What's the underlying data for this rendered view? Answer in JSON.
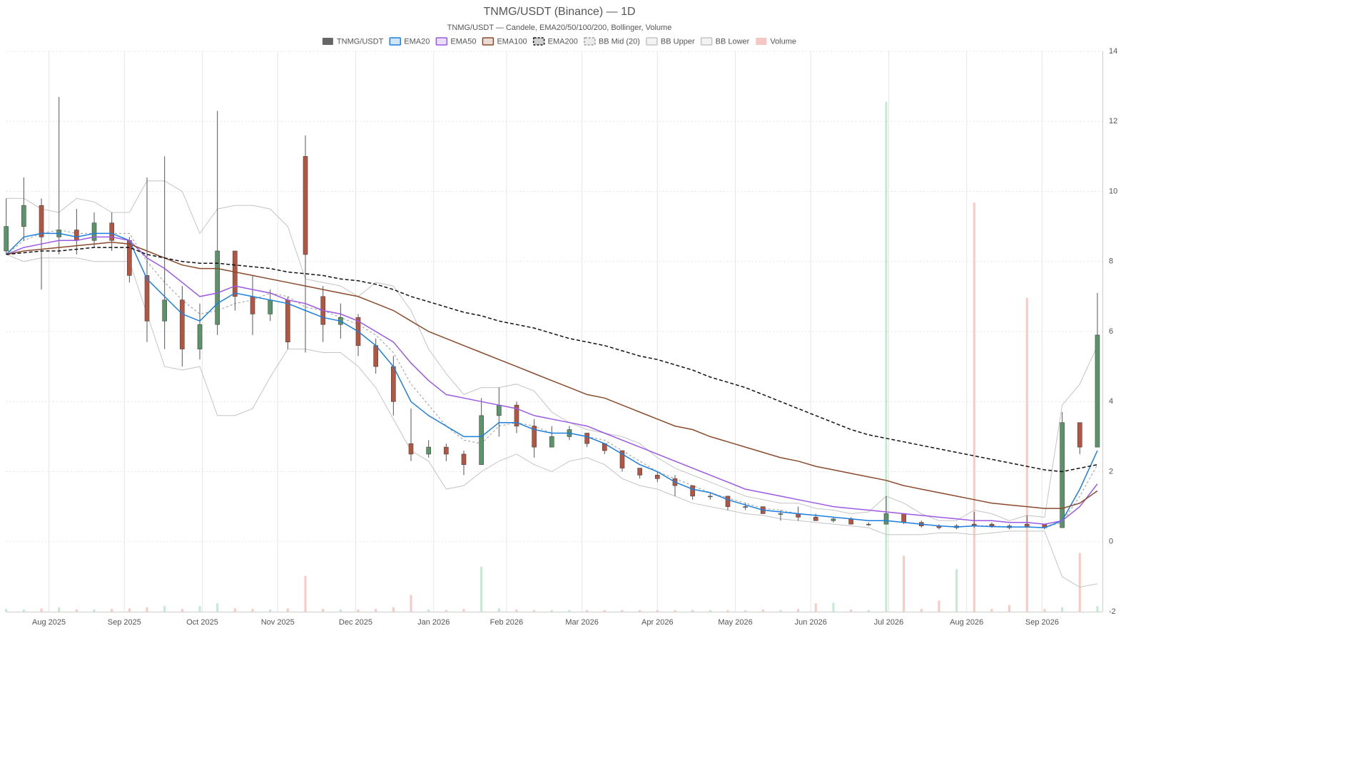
{
  "chart_data": {
    "type": "candlestick",
    "title": "TNMG/USDT (Binance) — 1D",
    "subtitle": "TNMG/USDT — Candele, EMA20/50/100/200, Bollinger, Volume",
    "x": [
      0,
      7,
      14,
      21,
      28,
      35,
      42,
      49,
      56,
      63,
      70,
      77,
      84,
      91,
      98,
      105,
      112,
      119,
      126,
      133,
      140,
      147,
      154,
      161,
      168,
      175,
      182,
      189,
      196,
      203,
      210,
      217,
      224,
      231,
      238,
      245,
      252,
      259,
      266,
      273,
      280,
      287,
      294,
      301,
      308,
      315,
      322,
      329,
      336,
      343,
      350,
      357,
      364,
      371,
      378,
      385,
      392,
      399,
      406,
      413,
      420,
      427,
      434
    ],
    "xlim": [
      0,
      436
    ],
    "xticks": [
      {
        "value": 17,
        "label": "Aug 2025"
      },
      {
        "value": 47,
        "label": "Sep 2025"
      },
      {
        "value": 78,
        "label": "Oct 2025"
      },
      {
        "value": 108,
        "label": "Nov 2025"
      },
      {
        "value": 139,
        "label": "Dec 2025"
      },
      {
        "value": 170,
        "label": "Jan 2026"
      },
      {
        "value": 199,
        "label": "Feb 2026"
      },
      {
        "value": 229,
        "label": "Mar 2026"
      },
      {
        "value": 259,
        "label": "Apr 2026"
      },
      {
        "value": 290,
        "label": "May 2026"
      },
      {
        "value": 320,
        "label": "Jun 2026"
      },
      {
        "value": 351,
        "label": "Jul 2026"
      },
      {
        "value": 382,
        "label": "Aug 2026"
      },
      {
        "value": 412,
        "label": "Sep 2026"
      }
    ],
    "ylim": [
      -2,
      14
    ],
    "yticks": [
      -2,
      0,
      2,
      4,
      6,
      8,
      10,
      12,
      14
    ],
    "grid": true,
    "candles": {
      "name": "TNMG/USDT",
      "color": "#666666",
      "up_color": "#5a9468",
      "down_color": "#b5553f",
      "open": [
        8.3,
        9.0,
        9.6,
        8.7,
        8.9,
        8.6,
        9.1,
        8.6,
        7.6,
        6.3,
        6.9,
        5.5,
        6.2,
        8.3,
        7.0,
        6.5,
        6.9,
        11.0,
        7.0,
        6.2,
        6.4,
        5.6,
        5.0,
        2.8,
        2.5,
        2.7,
        2.5,
        2.2,
        3.6,
        3.9,
        3.3,
        2.7,
        3.0,
        3.1,
        2.8,
        2.6,
        2.1,
        1.9,
        1.8,
        1.6,
        1.3,
        1.3,
        1.0,
        1.0,
        0.8,
        0.8,
        0.7,
        0.6,
        0.65,
        0.5,
        0.5,
        0.8,
        0.55,
        0.45,
        0.4,
        0.5,
        0.5,
        0.45,
        0.5,
        0.5,
        0.4,
        3.4,
        2.7
      ],
      "high": [
        9.8,
        10.4,
        9.8,
        12.7,
        9.5,
        9.4,
        9.4,
        8.7,
        10.4,
        11.0,
        7.3,
        6.8,
        12.3,
        8.3,
        7.6,
        7.2,
        7.0,
        11.6,
        7.3,
        6.8,
        6.5,
        5.8,
        5.3,
        3.8,
        2.9,
        2.8,
        2.6,
        4.1,
        4.4,
        4.0,
        3.5,
        3.3,
        3.3,
        3.1,
        2.8,
        2.6,
        2.1,
        2.0,
        1.9,
        1.6,
        1.4,
        1.3,
        1.1,
        1.0,
        0.9,
        1.0,
        0.8,
        0.7,
        0.7,
        0.55,
        1.3,
        0.8,
        0.6,
        0.5,
        0.5,
        0.85,
        0.55,
        0.5,
        0.75,
        0.5,
        3.7,
        3.4,
        7.1
      ],
      "low": [
        8.2,
        8.6,
        7.2,
        8.2,
        8.2,
        8.4,
        8.3,
        7.4,
        5.7,
        5.5,
        5.0,
        5.2,
        5.9,
        6.6,
        5.9,
        6.3,
        5.5,
        5.4,
        5.7,
        5.8,
        5.3,
        4.8,
        3.6,
        2.3,
        2.4,
        2.3,
        1.9,
        2.2,
        3.0,
        3.1,
        2.4,
        2.7,
        2.9,
        2.7,
        2.5,
        2.0,
        1.8,
        1.7,
        1.3,
        1.2,
        1.2,
        0.9,
        0.9,
        0.8,
        0.6,
        0.6,
        0.6,
        0.55,
        0.5,
        0.45,
        0.5,
        0.5,
        0.4,
        0.35,
        0.35,
        0.4,
        0.4,
        0.35,
        0.4,
        0.35,
        0.4,
        2.5,
        2.7
      ],
      "close": [
        9.0,
        9.6,
        8.7,
        8.9,
        8.6,
        9.1,
        8.6,
        7.6,
        6.3,
        6.9,
        5.5,
        6.2,
        8.3,
        7.0,
        6.5,
        6.9,
        5.7,
        8.2,
        6.2,
        6.4,
        5.6,
        5.0,
        4.0,
        2.5,
        2.7,
        2.5,
        2.2,
        3.6,
        3.9,
        3.3,
        2.7,
        3.0,
        3.2,
        2.8,
        2.6,
        2.1,
        1.9,
        1.8,
        1.6,
        1.3,
        1.3,
        1.0,
        1.0,
        0.8,
        0.8,
        0.7,
        0.6,
        0.65,
        0.5,
        0.5,
        0.8,
        0.55,
        0.45,
        0.4,
        0.45,
        0.45,
        0.45,
        0.4,
        0.42,
        0.4,
        3.4,
        2.7,
        5.9
      ]
    },
    "lines": [
      {
        "name": "EMA20",
        "color": "#1a7fe0",
        "dash": false,
        "values": [
          8.2,
          8.7,
          8.8,
          8.8,
          8.7,
          8.8,
          8.8,
          8.6,
          7.5,
          7.0,
          6.5,
          6.3,
          6.8,
          7.1,
          7.0,
          6.9,
          6.8,
          6.6,
          6.4,
          6.3,
          6.0,
          5.6,
          5.0,
          4.0,
          3.6,
          3.3,
          3.0,
          3.0,
          3.4,
          3.4,
          3.2,
          3.1,
          3.1,
          3.0,
          2.8,
          2.5,
          2.2,
          2.0,
          1.7,
          1.5,
          1.4,
          1.2,
          1.05,
          0.9,
          0.85,
          0.8,
          0.75,
          0.7,
          0.65,
          0.6,
          0.6,
          0.55,
          0.5,
          0.45,
          0.42,
          0.45,
          0.43,
          0.42,
          0.42,
          0.4,
          0.6,
          1.5,
          2.6
        ]
      },
      {
        "name": "EMA50",
        "color": "#9b59e6",
        "dash": false,
        "values": [
          8.2,
          8.4,
          8.5,
          8.6,
          8.6,
          8.7,
          8.7,
          8.6,
          8.1,
          7.8,
          7.4,
          7.0,
          7.1,
          7.3,
          7.2,
          7.1,
          6.9,
          6.8,
          6.6,
          6.5,
          6.3,
          6.0,
          5.7,
          5.1,
          4.6,
          4.2,
          4.1,
          4.0,
          3.9,
          3.8,
          3.6,
          3.5,
          3.4,
          3.3,
          3.1,
          2.9,
          2.7,
          2.5,
          2.3,
          2.1,
          1.9,
          1.7,
          1.5,
          1.4,
          1.3,
          1.2,
          1.1,
          1.0,
          0.95,
          0.9,
          0.85,
          0.8,
          0.75,
          0.7,
          0.65,
          0.6,
          0.6,
          0.55,
          0.55,
          0.5,
          0.6,
          1.0,
          1.65
        ]
      },
      {
        "name": "EMA100",
        "color": "#8b4a2b",
        "dash": false,
        "values": [
          8.2,
          8.3,
          8.35,
          8.4,
          8.45,
          8.5,
          8.55,
          8.5,
          8.3,
          8.1,
          7.9,
          7.8,
          7.8,
          7.7,
          7.6,
          7.5,
          7.4,
          7.3,
          7.2,
          7.1,
          7.0,
          6.8,
          6.6,
          6.3,
          6.0,
          5.8,
          5.6,
          5.4,
          5.2,
          5.0,
          4.8,
          4.6,
          4.4,
          4.2,
          4.1,
          3.9,
          3.7,
          3.5,
          3.3,
          3.2,
          3.0,
          2.85,
          2.7,
          2.55,
          2.4,
          2.3,
          2.15,
          2.05,
          1.95,
          1.85,
          1.75,
          1.6,
          1.5,
          1.4,
          1.3,
          1.2,
          1.1,
          1.05,
          1.0,
          0.95,
          0.95,
          1.1,
          1.45
        ]
      },
      {
        "name": "EMA200",
        "color": "#111111",
        "dash": true,
        "values": [
          8.2,
          8.25,
          8.3,
          8.3,
          8.35,
          8.4,
          8.4,
          8.4,
          8.2,
          8.1,
          8.0,
          7.95,
          7.95,
          7.9,
          7.85,
          7.8,
          7.7,
          7.65,
          7.6,
          7.5,
          7.45,
          7.35,
          7.2,
          7.0,
          6.85,
          6.7,
          6.55,
          6.45,
          6.3,
          6.2,
          6.1,
          5.95,
          5.8,
          5.7,
          5.6,
          5.45,
          5.3,
          5.2,
          5.05,
          4.9,
          4.7,
          4.55,
          4.4,
          4.2,
          4.0,
          3.8,
          3.6,
          3.4,
          3.2,
          3.05,
          2.95,
          2.85,
          2.75,
          2.65,
          2.55,
          2.45,
          2.35,
          2.25,
          2.15,
          2.05,
          2.0,
          2.1,
          2.2
        ]
      },
      {
        "name": "BB Mid (20)",
        "color": "#9a9a9a",
        "dash": true,
        "values": [
          8.2,
          8.6,
          8.8,
          8.9,
          8.8,
          8.8,
          8.8,
          8.8,
          8.0,
          7.4,
          6.9,
          6.5,
          6.6,
          6.8,
          6.9,
          7.1,
          7.0,
          6.7,
          6.6,
          6.4,
          6.2,
          5.9,
          5.4,
          4.5,
          3.9,
          3.3,
          2.9,
          2.8,
          3.3,
          3.4,
          3.3,
          3.1,
          3.1,
          3.0,
          2.9,
          2.6,
          2.3,
          2.0,
          1.8,
          1.6,
          1.4,
          1.25,
          1.1,
          0.95,
          0.9,
          0.8,
          0.75,
          0.7,
          0.65,
          0.6,
          0.6,
          0.55,
          0.5,
          0.45,
          0.42,
          0.45,
          0.45,
          0.42,
          0.42,
          0.4,
          0.55,
          1.3,
          2.2
        ]
      },
      {
        "name": "BB Upper",
        "color": "#c4c4c4",
        "dash": false,
        "values": [
          9.8,
          9.8,
          9.5,
          9.4,
          9.8,
          9.7,
          9.4,
          9.4,
          10.3,
          10.3,
          10.0,
          8.8,
          9.5,
          9.6,
          9.6,
          9.5,
          9.0,
          7.5,
          7.4,
          7.3,
          7.0,
          7.4,
          7.3,
          6.6,
          5.5,
          4.8,
          4.2,
          4.4,
          4.4,
          4.5,
          4.3,
          3.7,
          3.4,
          3.2,
          3.1,
          3.0,
          2.8,
          2.4,
          2.1,
          1.9,
          1.7,
          1.5,
          1.3,
          1.2,
          1.1,
          1.1,
          0.95,
          0.9,
          0.8,
          0.85,
          1.3,
          1.1,
          0.8,
          0.6,
          0.6,
          0.9,
          0.8,
          0.6,
          0.75,
          0.7,
          3.9,
          4.5,
          5.6
        ]
      },
      {
        "name": "BB Lower",
        "color": "#c4c4c4",
        "dash": false,
        "values": [
          8.2,
          8.0,
          8.1,
          8.1,
          8.1,
          8.0,
          8.0,
          8.0,
          6.5,
          5.0,
          4.9,
          5.0,
          3.6,
          3.6,
          3.8,
          4.7,
          5.5,
          5.5,
          5.4,
          5.4,
          5.0,
          4.4,
          3.5,
          2.6,
          2.3,
          1.5,
          1.6,
          2.0,
          2.3,
          2.5,
          2.2,
          2.0,
          2.3,
          2.4,
          2.2,
          1.8,
          1.6,
          1.5,
          1.3,
          1.1,
          1.0,
          0.9,
          0.8,
          0.75,
          0.65,
          0.6,
          0.55,
          0.5,
          0.45,
          0.4,
          0.2,
          0.2,
          0.2,
          0.25,
          0.25,
          0.2,
          0.25,
          0.3,
          0.3,
          0.3,
          -1.0,
          -1.3,
          -1.2
        ]
      }
    ],
    "volume": {
      "name": "Volume",
      "color": "#f6c6c0",
      "up_color": "#b8e6c6",
      "down_color": "#f6c1bb",
      "lim": [
        0,
        100
      ],
      "values": [
        0.5,
        0.4,
        0.6,
        0.8,
        0.4,
        0.4,
        0.5,
        0.6,
        0.8,
        1.0,
        0.5,
        1.0,
        1.5,
        0.6,
        0.5,
        0.4,
        0.6,
        6.4,
        0.5,
        0.4,
        0.4,
        0.5,
        0.8,
        3.0,
        0.4,
        0.3,
        0.5,
        8.0,
        0.6,
        0.4,
        0.3,
        0.3,
        0.3,
        0.3,
        0.3,
        0.3,
        0.3,
        0.3,
        0.3,
        0.3,
        0.3,
        0.3,
        0.3,
        0.4,
        0.3,
        0.5,
        1.5,
        1.6,
        0.4,
        0.3,
        91,
        10,
        0.5,
        2.0,
        7.6,
        73,
        0.5,
        1.2,
        56,
        0.5,
        0.8,
        10.5,
        1.0
      ]
    }
  }
}
